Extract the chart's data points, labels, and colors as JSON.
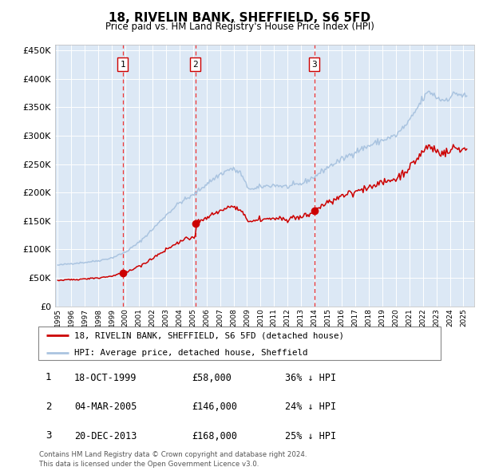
{
  "title": "18, RIVELIN BANK, SHEFFIELD, S6 5FD",
  "subtitle": "Price paid vs. HM Land Registry's House Price Index (HPI)",
  "footer": "Contains HM Land Registry data © Crown copyright and database right 2024.\nThis data is licensed under the Open Government Licence v3.0.",
  "legend_line1": "18, RIVELIN BANK, SHEFFIELD, S6 5FD (detached house)",
  "legend_line2": "HPI: Average price, detached house, Sheffield",
  "transactions": [
    {
      "num": 1,
      "date": "18-OCT-1999",
      "price": 58000,
      "hpi_diff": "36% ↓ HPI",
      "year": 1999.8
    },
    {
      "num": 2,
      "date": "04-MAR-2005",
      "price": 146000,
      "hpi_diff": "24% ↓ HPI",
      "year": 2005.17
    },
    {
      "num": 3,
      "date": "20-DEC-2013",
      "price": 168000,
      "hpi_diff": "25% ↓ HPI",
      "year": 2013.97
    }
  ],
  "hpi_color": "#aac4e0",
  "price_color": "#cc0000",
  "background_plot": "#dce8f5",
  "vline_color": "#ee3333",
  "marker_color": "#cc0000",
  "ylim": [
    0,
    460000
  ],
  "yticks": [
    0,
    50000,
    100000,
    150000,
    200000,
    250000,
    300000,
    350000,
    400000,
    450000
  ],
  "xlim_start": 1994.8,
  "xlim_end": 2025.8
}
